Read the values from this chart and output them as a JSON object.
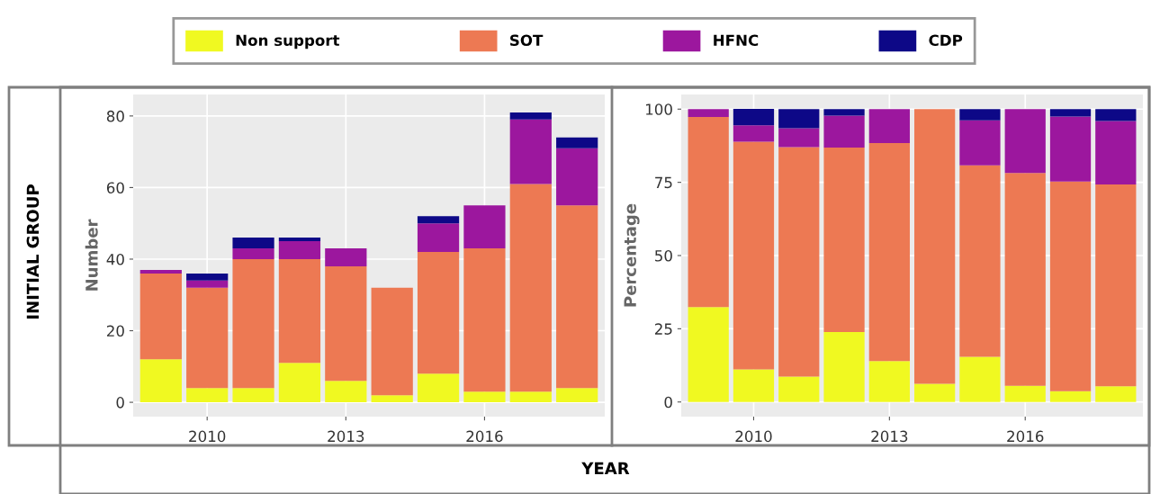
{
  "chart_data": [
    {
      "type": "bar",
      "stacked": true,
      "ylabel": "Number",
      "x": [
        2009,
        2010,
        2011,
        2012,
        2013,
        2014,
        2015,
        2016,
        2017,
        2018
      ],
      "xlim": [
        2008.4,
        2018.6
      ],
      "xticks": [
        2010,
        2013,
        2016
      ],
      "ylim": [
        -4,
        86
      ],
      "yticks": [
        0,
        20,
        40,
        60,
        80
      ],
      "grid": true,
      "legend": "top",
      "annotations": [
        "INITIAL GROUP",
        "YEAR"
      ],
      "series": [
        {
          "name": "Non support",
          "color": "#f0f921",
          "values": [
            12,
            4,
            4,
            11,
            6,
            2,
            8,
            3,
            3,
            4
          ]
        },
        {
          "name": "SOT",
          "color": "#ed7953",
          "values": [
            24,
            28,
            36,
            29,
            32,
            30,
            34,
            40,
            58,
            51
          ]
        },
        {
          "name": "HFNC",
          "color": "#9c179e",
          "values": [
            1,
            2,
            3,
            5,
            5,
            0,
            8,
            12,
            18,
            16
          ]
        },
        {
          "name": "CDP",
          "color": "#0d0887",
          "values": [
            0,
            2,
            3,
            1,
            0,
            0,
            2,
            0,
            2,
            3
          ]
        }
      ]
    },
    {
      "type": "bar",
      "stacked": true,
      "ylabel": "Percentage",
      "x": [
        2009,
        2010,
        2011,
        2012,
        2013,
        2014,
        2015,
        2016,
        2017,
        2018
      ],
      "xlim": [
        2008.4,
        2018.6
      ],
      "xticks": [
        2010,
        2013,
        2016
      ],
      "ylim": [
        -5,
        105
      ],
      "yticks": [
        0,
        25,
        50,
        75,
        100
      ],
      "grid": true,
      "series": [
        {
          "color": "#f0f921",
          "values": [
            32.4,
            11.1,
            8.7,
            23.9,
            14.0,
            6.2,
            15.4,
            5.5,
            3.7,
            5.4
          ]
        },
        {
          "color": "#ed7953",
          "values": [
            64.9,
            77.8,
            78.3,
            63.0,
            74.4,
            93.8,
            65.4,
            72.7,
            71.6,
            68.9
          ]
        },
        {
          "color": "#9c179e",
          "values": [
            2.7,
            5.6,
            6.5,
            10.9,
            11.6,
            0,
            15.4,
            21.8,
            22.2,
            21.6
          ]
        },
        {
          "color": "#0d0887",
          "values": [
            0,
            5.6,
            6.5,
            2.2,
            0,
            0,
            3.8,
            0,
            2.5,
            4.1
          ]
        }
      ]
    }
  ]
}
